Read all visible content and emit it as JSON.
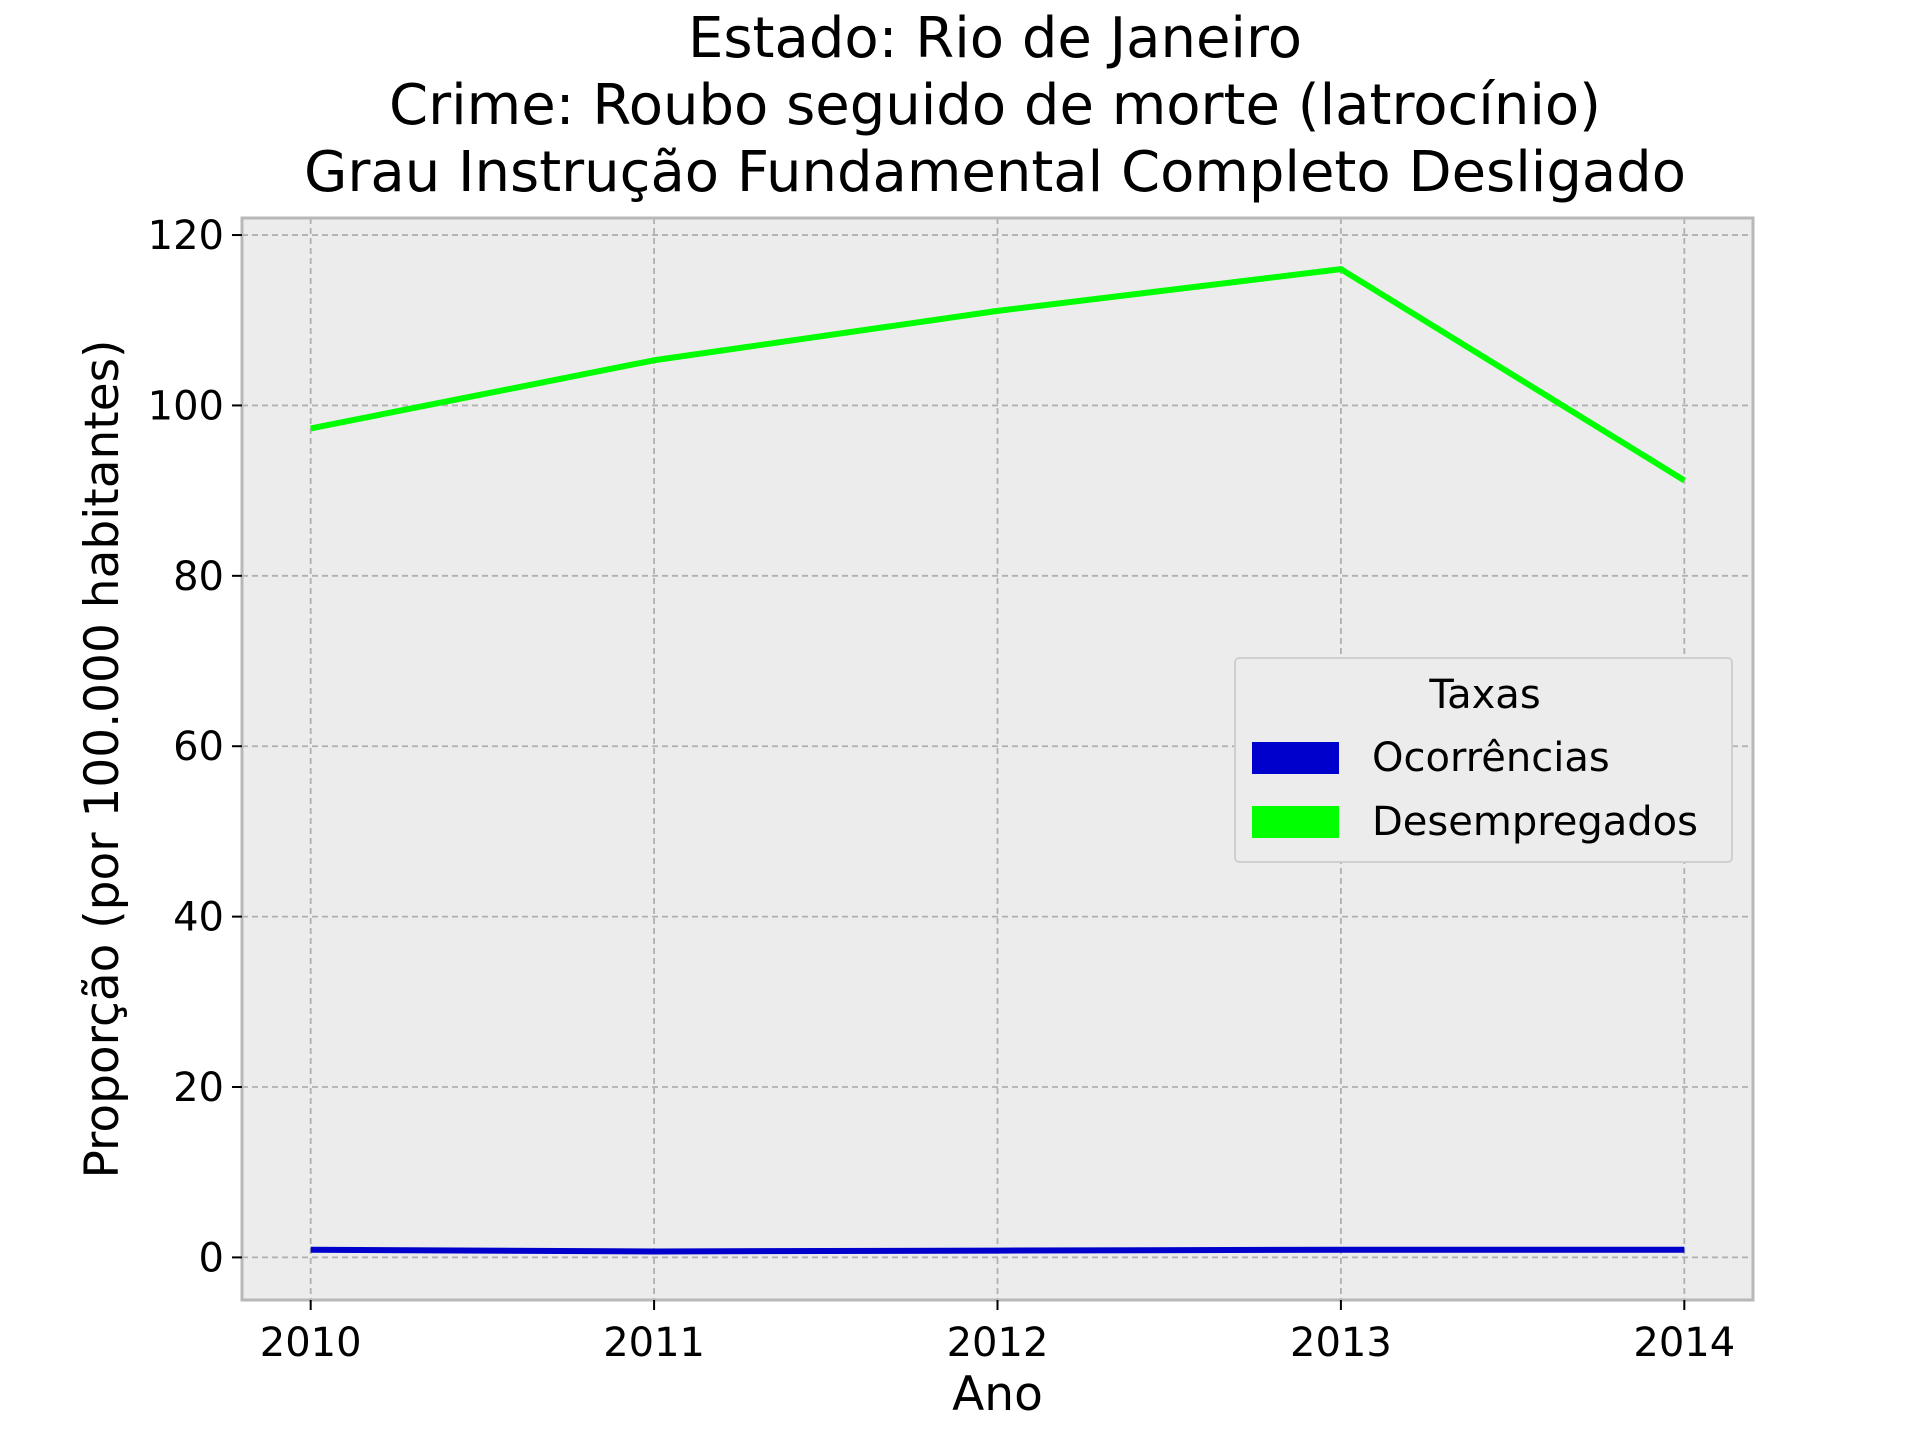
{
  "chart_data": {
    "type": "line",
    "title_lines": [
      "Estado: Rio de Janeiro",
      "Crime: Roubo seguido de morte (latrocínio)",
      "Grau Instrução  Fundamental Completo   Desligado"
    ],
    "xlabel": "Ano",
    "ylabel": "Proporção (por 100.000 habitantes)",
    "x": [
      2010,
      2011,
      2012,
      2013,
      2014
    ],
    "x_tick_labels": [
      "2010",
      "2011",
      "2012",
      "2013",
      "2014"
    ],
    "y_ticks": [
      0,
      20,
      40,
      60,
      80,
      100,
      120
    ],
    "y_tick_labels": [
      "0",
      "20",
      "40",
      "60",
      "80",
      "100",
      "120"
    ],
    "xlim": [
      2009.8,
      2014.2
    ],
    "ylim": [
      -5,
      122
    ],
    "grid": true,
    "legend": {
      "title": "Taxas",
      "placement": "center-right"
    },
    "series": [
      {
        "name": "Ocorrências",
        "color": "#0000cc",
        "values": [
          0.9,
          0.7,
          0.8,
          0.9,
          0.9
        ]
      },
      {
        "name": "Desempregados",
        "color": "#00ff00",
        "values": [
          97.3,
          105.3,
          111.1,
          116.0,
          91.2
        ]
      }
    ],
    "colors": {
      "plot_background": "#ececec",
      "grid": "#b0b0b0",
      "axes_edge": "#b8b8b8"
    }
  }
}
